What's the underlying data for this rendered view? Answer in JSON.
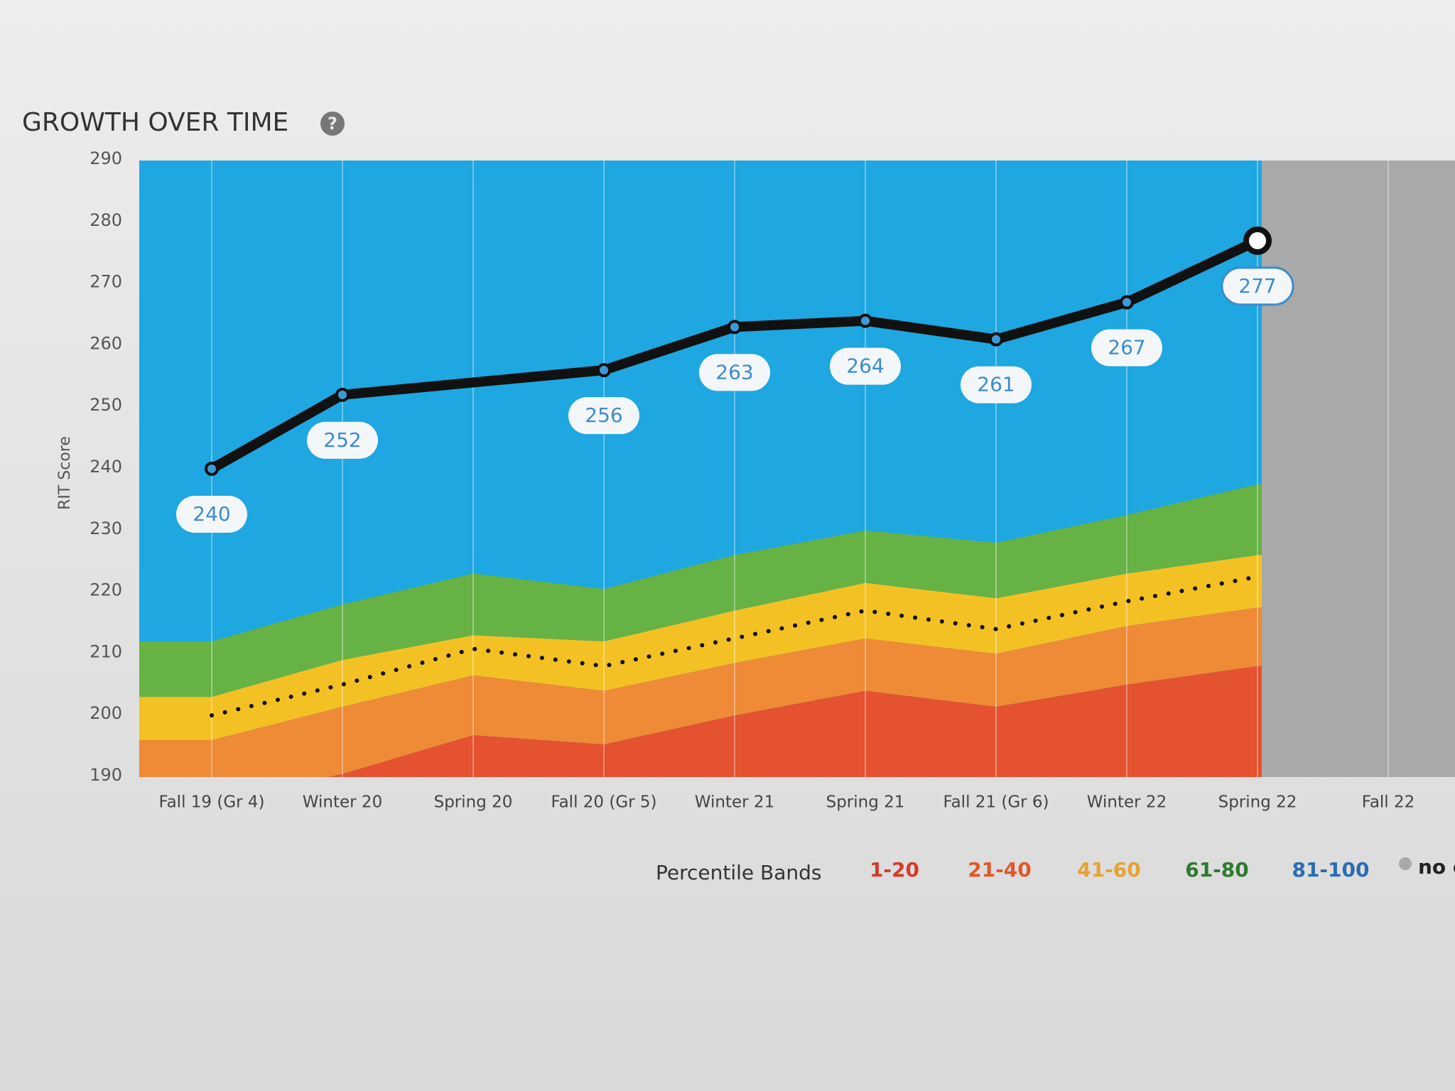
{
  "chart_data": {
    "type": "line",
    "title": "GROWTH OVER TIME",
    "y_label": "RIT Score",
    "categories": [
      "Fall 19 (Gr 4)",
      "Winter 20",
      "Spring 20",
      "Fall 20 (Gr 5)",
      "Winter 21",
      "Spring 21",
      "Fall 21 (Gr 6)",
      "Winter 22",
      "Spring 22",
      "Fall 22"
    ],
    "values": [
      240,
      252,
      null,
      256,
      263,
      264,
      261,
      267,
      277,
      null
    ],
    "color": "#111111",
    "label_color": "#3d8ccc",
    "ylim": [
      190,
      290
    ],
    "yticks": [
      190,
      200,
      210,
      220,
      230,
      240,
      250,
      260,
      270,
      280,
      290
    ],
    "legend_title": "Percentile Bands",
    "bands": [
      {
        "name": "1-20",
        "color": "#e4522f",
        "legend_color": "#d63a2a",
        "upper": [
          186,
          190.5,
          196.8,
          195.3,
          200,
          204,
          201.4,
          205,
          208,
          null
        ]
      },
      {
        "name": "21-40",
        "color": "#ef8a36",
        "legend_color": "#e0582a",
        "upper": [
          196,
          201.4,
          206.5,
          204,
          208.5,
          212.5,
          210,
          214.5,
          217.5,
          null
        ]
      },
      {
        "name": "41-60",
        "color": "#f4c125",
        "legend_color": "#e8a230",
        "upper": [
          203,
          209,
          213,
          212,
          217,
          221.5,
          219,
          223,
          226,
          null
        ]
      },
      {
        "name": "61-80",
        "color": "#67b244",
        "legend_color": "#2f7a2f",
        "upper": [
          212,
          218,
          223,
          220.5,
          226,
          230,
          228,
          232.5,
          237.5,
          null
        ]
      },
      {
        "name": "81-100",
        "color": "#1ea7e0",
        "legend_color": "#2a6db0"
      }
    ],
    "median": [
      200,
      205,
      210.8,
      208,
      212.5,
      217,
      214,
      218.5,
      222.5,
      null
    ],
    "no_data_label": "no c",
    "no_data_color": "#a9a9a9"
  }
}
